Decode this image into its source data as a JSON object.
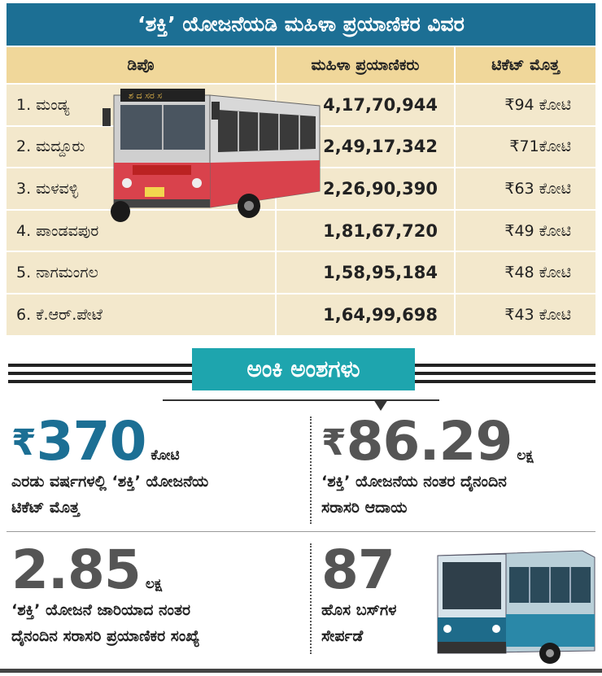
{
  "title": "‘ಶಕ್ತಿ’ ಯೋಜನೆಯಡಿ ಮಹಿಳಾ ಪ್ರಯಾಣಿಕರ ವಿವರ",
  "table": {
    "headers": [
      "ಡಿಪೊ",
      "ಮಹಿಳಾ ಪ್ರಯಾಣಿಕರು",
      "ಟಿಕೆಟ್ ಮೊತ್ತ"
    ],
    "rows": [
      {
        "depot": "1. ಮಂಡ್ಯ",
        "passengers": "4,17,70,944",
        "amount": "₹94 ಕೋಟಿ"
      },
      {
        "depot": "2. ಮದ್ದೂರು",
        "passengers": "2,49,17,342",
        "amount": "₹71ಕೋಟಿ"
      },
      {
        "depot": "3. ಮಳವಳ್ಳಿ",
        "passengers": "2,26,90,390",
        "amount": "₹63 ಕೋಟಿ"
      },
      {
        "depot": "4. ಪಾಂಡವಪುರ",
        "passengers": "1,81,67,720",
        "amount": "₹49 ಕೋಟಿ"
      },
      {
        "depot": "5. ನಾಗಮಂಗಲ",
        "passengers": "1,58,95,184",
        "amount": "₹48 ಕೋಟಿ"
      },
      {
        "depot": "6. ಕೆ.ಆರ್.ಪೇಟೆ",
        "passengers": "1,64,99,698",
        "amount": "₹43 ಕೋಟಿ"
      }
    ]
  },
  "bus_sign": "ಶ ದ ಸರ ಸ",
  "section_title": "ಅಂಕಿ ಅಂಶಗಳು",
  "stats": {
    "s1": {
      "rupee": "₹",
      "value": "370",
      "unit": "ಕೋಟಿ",
      "desc1": "ಎರಡು ವರ್ಷಗಳಲ್ಲಿ ‘ಶಕ್ತಿ’ ಯೋಜನೆಯ",
      "desc2": "ಟಿಕೆಟ್ ಮೊತ್ತ"
    },
    "s2": {
      "rupee": "₹",
      "value": "86.29",
      "unit": "ಲಕ್ಷ",
      "desc1": "‘ಶಕ್ತಿ’ ಯೋಜನೆಯ ನಂತರ ದೈನಂದಿನ",
      "desc2": "ಸರಾಸರಿ ಆದಾಯ"
    },
    "s3": {
      "value": "2.85",
      "unit": "ಲಕ್ಷ",
      "desc1": "‘ಶಕ್ತಿ’ ಯೋಜನೆ ಜಾರಿಯಾದ ನಂತರ",
      "desc2": "ದೈನಂದಿನ ಸರಾಸರಿ ಪ್ರಯಾಣಿಕರ ಸಂಖ್ಯೆ"
    },
    "s4": {
      "value": "87",
      "desc1": "ಹೊಸ ಬಸ್‌ಗಳ",
      "desc2": "ಸೇರ್ಪಡೆ"
    }
  },
  "colors": {
    "title_bg": "#1c6f94",
    "header_bg": "#f0d79a",
    "row_bg": "#f3e8cc",
    "tag_bg": "#1ea5ae"
  }
}
